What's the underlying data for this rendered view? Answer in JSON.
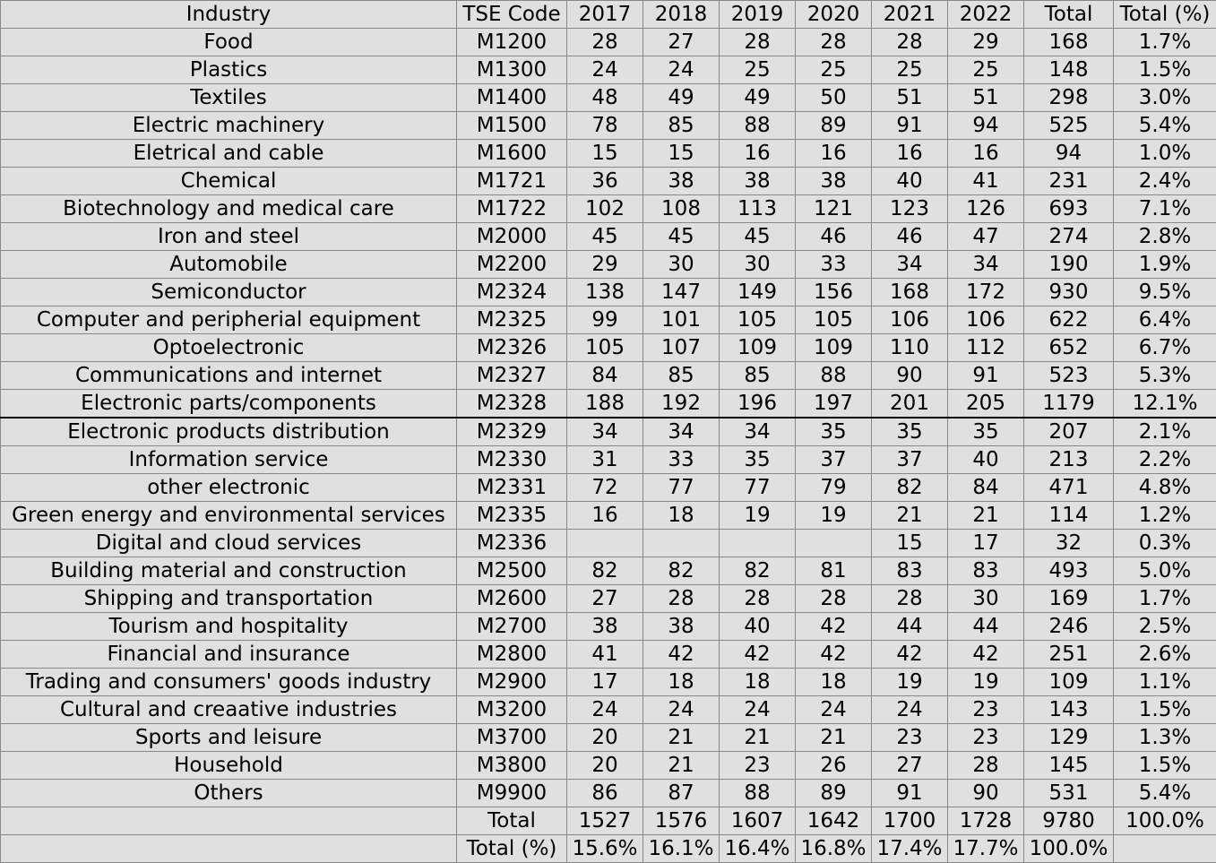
{
  "headers": [
    "Industry",
    "TSE Code",
    "2017",
    "2018",
    "2019",
    "2020",
    "2021",
    "2022",
    "Total",
    "Total (%)"
  ],
  "rows": [
    [
      "Food",
      "M1200",
      "28",
      "27",
      "28",
      "28",
      "28",
      "29",
      "168",
      "1.7%"
    ],
    [
      "Plastics",
      "M1300",
      "24",
      "24",
      "25",
      "25",
      "25",
      "25",
      "148",
      "1.5%"
    ],
    [
      "Textiles",
      "M1400",
      "48",
      "49",
      "49",
      "50",
      "51",
      "51",
      "298",
      "3.0%"
    ],
    [
      "Electric machinery",
      "M1500",
      "78",
      "85",
      "88",
      "89",
      "91",
      "94",
      "525",
      "5.4%"
    ],
    [
      "Eletrical and cable",
      "M1600",
      "15",
      "15",
      "16",
      "16",
      "16",
      "16",
      "94",
      "1.0%"
    ],
    [
      "Chemical",
      "M1721",
      "36",
      "38",
      "38",
      "38",
      "40",
      "41",
      "231",
      "2.4%"
    ],
    [
      "Biotechnology and medical care",
      "M1722",
      "102",
      "108",
      "113",
      "121",
      "123",
      "126",
      "693",
      "7.1%"
    ],
    [
      "Iron and steel",
      "M2000",
      "45",
      "45",
      "45",
      "46",
      "46",
      "47",
      "274",
      "2.8%"
    ],
    [
      "Automobile",
      "M2200",
      "29",
      "30",
      "30",
      "33",
      "34",
      "34",
      "190",
      "1.9%"
    ],
    [
      "Semiconductor",
      "M2324",
      "138",
      "147",
      "149",
      "156",
      "168",
      "172",
      "930",
      "9.5%"
    ],
    [
      "Computer and peripherial equipment",
      "M2325",
      "99",
      "101",
      "105",
      "105",
      "106",
      "106",
      "622",
      "6.4%"
    ],
    [
      "Optoelectronic",
      "M2326",
      "105",
      "107",
      "109",
      "109",
      "110",
      "112",
      "652",
      "6.7%"
    ],
    [
      "Communications and internet",
      "M2327",
      "84",
      "85",
      "85",
      "88",
      "90",
      "91",
      "523",
      "5.3%"
    ],
    [
      "Electronic parts/components",
      "M2328",
      "188",
      "192",
      "196",
      "197",
      "201",
      "205",
      "1179",
      "12.1%"
    ],
    [
      "Electronic products distribution",
      "M2329",
      "34",
      "34",
      "34",
      "35",
      "35",
      "35",
      "207",
      "2.1%"
    ],
    [
      "Information service",
      "M2330",
      "31",
      "33",
      "35",
      "37",
      "37",
      "40",
      "213",
      "2.2%"
    ],
    [
      "other electronic",
      "M2331",
      "72",
      "77",
      "77",
      "79",
      "82",
      "84",
      "471",
      "4.8%"
    ],
    [
      "Green energy and environmental services",
      "M2335",
      "16",
      "18",
      "19",
      "19",
      "21",
      "21",
      "114",
      "1.2%"
    ],
    [
      "Digital and cloud services",
      "M2336",
      "",
      "",
      "",
      "",
      "15",
      "17",
      "32",
      "0.3%"
    ],
    [
      "Building material and construction",
      "M2500",
      "82",
      "82",
      "82",
      "81",
      "83",
      "83",
      "493",
      "5.0%"
    ],
    [
      "Shipping and transportation",
      "M2600",
      "27",
      "28",
      "28",
      "28",
      "28",
      "30",
      "169",
      "1.7%"
    ],
    [
      "Tourism and hospitality",
      "M2700",
      "38",
      "38",
      "40",
      "42",
      "44",
      "44",
      "246",
      "2.5%"
    ],
    [
      "Financial and insurance",
      "M2800",
      "41",
      "42",
      "42",
      "42",
      "42",
      "42",
      "251",
      "2.6%"
    ],
    [
      "Trading and consumers' goods industry",
      "M2900",
      "17",
      "18",
      "18",
      "18",
      "19",
      "19",
      "109",
      "1.1%"
    ],
    [
      "Cultural and creaative industries",
      "M3200",
      "24",
      "24",
      "24",
      "24",
      "24",
      "23",
      "143",
      "1.5%"
    ],
    [
      "Sports and leisure",
      "M3700",
      "20",
      "21",
      "21",
      "21",
      "23",
      "23",
      "129",
      "1.3%"
    ],
    [
      "Household",
      "M3800",
      "20",
      "21",
      "23",
      "26",
      "27",
      "28",
      "145",
      "1.5%"
    ],
    [
      "Others",
      "M9900",
      "86",
      "87",
      "88",
      "89",
      "91",
      "90",
      "531",
      "5.4%"
    ]
  ],
  "totals": [
    "",
    "Total",
    "1527",
    "1576",
    "1607",
    "1642",
    "1700",
    "1728",
    "9780",
    "100.0%"
  ],
  "totals_pct": [
    "",
    "Total (%)",
    "15.6%",
    "16.1%",
    "16.4%",
    "16.8%",
    "17.4%",
    "17.7%",
    "100.0%",
    ""
  ]
}
